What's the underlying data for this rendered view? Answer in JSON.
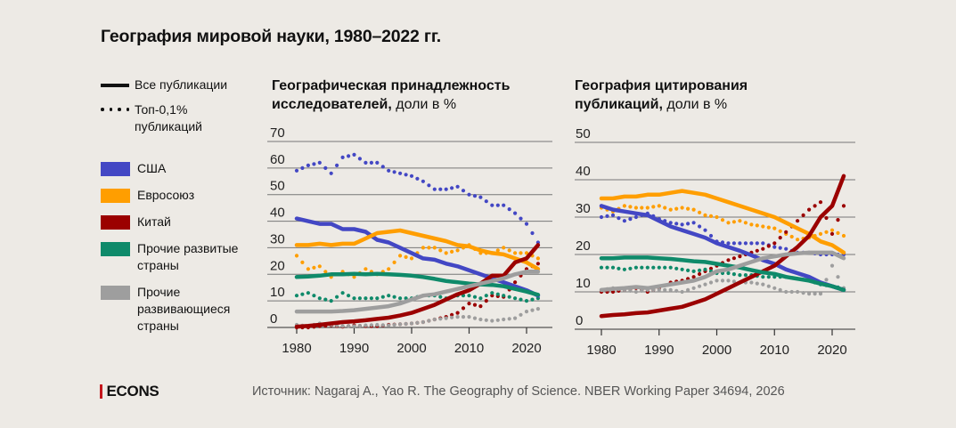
{
  "title": "География мировой науки, 1980–2022 гг.",
  "legend": {
    "all_pubs": "Все публикации",
    "top_pubs_line1": "Топ-0,1%",
    "top_pubs_line2": "публикаций",
    "series": [
      {
        "name": "США",
        "color": "#4347c4"
      },
      {
        "name": "Евросоюз",
        "color": "#ff9e00"
      },
      {
        "name": "Китай",
        "color": "#9b0000"
      },
      {
        "name": "Прочие развитые страны",
        "color": "#0f8a6a"
      },
      {
        "name": "Прочие развивающиеся страны",
        "color": "#9e9e9e"
      }
    ]
  },
  "footer": {
    "logo": "ECONS",
    "source": "Источник: Nagaraj A., Yao R. The Geography of Science. NBER Working Paper 34694, 2026"
  },
  "chart_data": [
    {
      "type": "line",
      "title_bold": "Географическая принадлежность исследователей,",
      "title_light": "доли в %",
      "xlabel": "",
      "ylabel": "",
      "xlim": [
        1980,
        2022
      ],
      "ylim": [
        0,
        70
      ],
      "yticks": [
        0,
        10,
        20,
        30,
        40,
        50,
        60,
        70
      ],
      "xticks": [
        1980,
        1990,
        2000,
        2010,
        2020
      ],
      "grid": true,
      "x": [
        1980,
        1982,
        1984,
        1986,
        1988,
        1990,
        1992,
        1994,
        1996,
        1998,
        2000,
        2002,
        2004,
        2006,
        2008,
        2010,
        2012,
        2014,
        2016,
        2018,
        2020,
        2022
      ],
      "series": [
        {
          "name": "США",
          "style": "solid",
          "color": "#4347c4",
          "values": [
            41,
            40,
            39,
            39,
            37,
            37,
            36,
            33,
            32,
            30,
            28,
            26,
            25.5,
            24,
            23,
            21.5,
            20,
            18.5,
            17,
            15.5,
            14,
            12
          ]
        },
        {
          "name": "Евросоюз",
          "style": "solid",
          "color": "#ff9e00",
          "values": [
            31,
            31,
            31.5,
            31,
            31.5,
            31.5,
            33.5,
            35.5,
            36,
            36.5,
            35.5,
            34.5,
            33.5,
            32.5,
            31,
            30.5,
            29,
            28,
            27.5,
            26,
            24.5,
            22
          ]
        },
        {
          "name": "Китай",
          "style": "solid",
          "color": "#9b0000",
          "values": [
            0.3,
            0.6,
            1,
            1.5,
            2,
            2.3,
            2.7,
            3.2,
            3.7,
            4.5,
            5.5,
            7,
            8.5,
            10.5,
            12.5,
            14,
            16.5,
            19.5,
            19.5,
            24.5,
            26,
            31
          ]
        },
        {
          "name": "Прочие развитые страны",
          "style": "solid",
          "color": "#0f8a6a",
          "values": [
            19,
            19.2,
            19.5,
            20,
            20,
            20.2,
            20,
            20.2,
            20,
            19.8,
            19.5,
            19,
            18.3,
            17.5,
            17,
            16.5,
            16.2,
            16,
            15.5,
            14.5,
            13.5,
            12.3
          ]
        },
        {
          "name": "Прочие развивающиеся страны",
          "style": "solid",
          "color": "#9e9e9e",
          "values": [
            6,
            6,
            6,
            6,
            6.2,
            6.5,
            7,
            7.5,
            8,
            9,
            10.5,
            12,
            12.5,
            13.5,
            14.5,
            15.5,
            16.5,
            17.5,
            18.5,
            20,
            21,
            21
          ]
        },
        {
          "name": "США",
          "style": "dotted",
          "color": "#4347c4",
          "values": [
            59,
            61,
            62,
            58,
            64,
            65,
            62,
            62,
            59,
            58,
            57,
            55,
            52,
            52,
            53,
            50,
            49,
            46,
            46,
            43,
            39,
            32
          ]
        },
        {
          "name": "Евросоюз",
          "style": "dotted",
          "color": "#ff9e00",
          "values": [
            27,
            22,
            23,
            19,
            21,
            19,
            22,
            20,
            22,
            27,
            26,
            30,
            30,
            28,
            29,
            31,
            28,
            28,
            30,
            28,
            28,
            26
          ]
        },
        {
          "name": "Китай",
          "style": "dotted",
          "color": "#9b0000",
          "values": [
            0,
            0,
            0.5,
            0.8,
            0.3,
            0.8,
            0.5,
            0.5,
            1,
            1.2,
            1.5,
            2,
            3,
            4,
            5.5,
            9,
            8,
            12,
            11.5,
            17,
            22,
            24
          ]
        },
        {
          "name": "Прочие развитые страны",
          "style": "dotted",
          "color": "#0f8a6a",
          "values": [
            12,
            13,
            11,
            10,
            13,
            11,
            11,
            11,
            12,
            11,
            11,
            12,
            12,
            11,
            12,
            12,
            11,
            13,
            12,
            11,
            10,
            11
          ]
        },
        {
          "name": "Прочие развивающиеся страны",
          "style": "dotted",
          "color": "#9e9e9e",
          "values": [
            1,
            0.5,
            1.5,
            1,
            0.5,
            0.5,
            0.8,
            1,
            0.8,
            1.2,
            1.5,
            2,
            3,
            3.5,
            4,
            4,
            3,
            2.5,
            3,
            3.5,
            6,
            7
          ]
        }
      ]
    },
    {
      "type": "line",
      "title_bold": "География цитирования публикаций,",
      "title_light": "доли в %",
      "xlabel": "",
      "ylabel": "",
      "xlim": [
        1980,
        2022
      ],
      "ylim": [
        0,
        50
      ],
      "yticks": [
        0,
        10,
        20,
        30,
        40,
        50
      ],
      "xticks": [
        1980,
        1990,
        2000,
        2010,
        2020
      ],
      "grid": true,
      "x": [
        1980,
        1982,
        1984,
        1986,
        1988,
        1990,
        1992,
        1994,
        1996,
        1998,
        2000,
        2002,
        2004,
        2006,
        2008,
        2010,
        2012,
        2014,
        2016,
        2018,
        2020,
        2022
      ],
      "series": [
        {
          "name": "США",
          "style": "solid",
          "color": "#4347c4",
          "values": [
            33,
            32,
            31.5,
            31,
            30.5,
            29,
            27.5,
            26.5,
            25.5,
            24.5,
            23,
            22,
            21,
            19.8,
            18.5,
            17.5,
            16,
            15,
            14,
            12.5,
            11.5,
            10.5
          ]
        },
        {
          "name": "Евросоюз",
          "style": "solid",
          "color": "#ff9e00",
          "values": [
            35,
            35,
            35.5,
            35.5,
            36,
            36,
            36.5,
            37,
            36.5,
            36,
            35,
            34,
            33,
            32,
            31,
            30,
            28.5,
            27,
            25.5,
            23.5,
            22.5,
            20.5
          ]
        },
        {
          "name": "Китай",
          "style": "solid",
          "color": "#9b0000",
          "values": [
            3.5,
            3.8,
            4,
            4.3,
            4.5,
            5,
            5.5,
            6,
            7,
            8,
            9.5,
            11,
            12.5,
            14,
            15.5,
            17,
            19.5,
            22,
            25,
            30,
            33,
            41
          ]
        },
        {
          "name": "Прочие развитые страны",
          "style": "solid",
          "color": "#0f8a6a",
          "values": [
            19,
            19,
            19.2,
            19.2,
            19.2,
            19,
            18.8,
            18.5,
            18.2,
            18,
            17.5,
            17,
            16.5,
            15.8,
            15.2,
            14.8,
            14,
            13.5,
            13,
            12.2,
            11.5,
            10.5
          ]
        },
        {
          "name": "Прочие развивающиеся страны",
          "style": "solid",
          "color": "#9e9e9e",
          "values": [
            10.5,
            10.8,
            11,
            11.3,
            11,
            11.5,
            12,
            12.5,
            13,
            14,
            15.5,
            16,
            17,
            18,
            19,
            19.5,
            20,
            20.3,
            20.5,
            20.5,
            20.5,
            19
          ]
        },
        {
          "name": "США",
          "style": "dotted",
          "color": "#4347c4",
          "values": [
            30,
            30.5,
            29,
            30,
            31,
            29.5,
            28.5,
            28,
            28.5,
            26.5,
            23.5,
            23,
            23,
            23,
            23,
            22,
            21.5,
            20.5,
            20.5,
            20,
            20,
            20
          ]
        },
        {
          "name": "Евросоюз",
          "style": "dotted",
          "color": "#ff9e00",
          "values": [
            32.5,
            31.5,
            33,
            32.5,
            32.5,
            33,
            32,
            32.5,
            32,
            30.5,
            30,
            28.5,
            29,
            28,
            27.5,
            27,
            25.5,
            24,
            24.5,
            25.5,
            26.5,
            25
          ]
        },
        {
          "name": "Китай",
          "style": "dotted",
          "color": "#9b0000",
          "values": [
            10,
            10,
            10.5,
            11,
            10,
            11,
            12.5,
            13,
            14,
            15.5,
            17,
            18.5,
            19.5,
            20.5,
            21.5,
            23,
            26,
            29,
            32,
            34,
            25.5,
            33
          ]
        },
        {
          "name": "Прочие развитые страны",
          "style": "dotted",
          "color": "#0f8a6a",
          "values": [
            16.5,
            16.5,
            16,
            16.5,
            16.5,
            16.5,
            16.5,
            16,
            15.5,
            16,
            15,
            15,
            14.5,
            14.5,
            14,
            14,
            14,
            13.5,
            13,
            12,
            11.5,
            11
          ]
        },
        {
          "name": "Прочие развивающиеся страны",
          "style": "dotted",
          "color": "#9e9e9e",
          "values": [
            10.5,
            11,
            10.5,
            10,
            10.5,
            10.5,
            10.5,
            10,
            11,
            12,
            13,
            13,
            12.5,
            12.5,
            12,
            11,
            10,
            10,
            9.5,
            9.5,
            17,
            11
          ]
        }
      ]
    }
  ]
}
